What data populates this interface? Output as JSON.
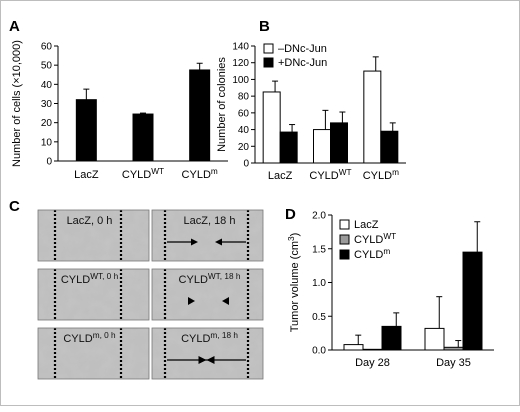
{
  "figure": {
    "panel_letters": [
      "A",
      "B",
      "C",
      "D"
    ]
  },
  "chart_data": [
    {
      "panel": "A",
      "type": "bar",
      "categories": [
        "LacZ",
        "CYLD|WT",
        "CYLD|m"
      ],
      "series": [
        {
          "values": [
            32,
            24.5,
            47.5
          ],
          "errors": [
            5.5,
            0.5,
            3.5
          ],
          "color": "#000000"
        }
      ],
      "ylabel": "Number of cells (×10,000)",
      "ylim": [
        0,
        60
      ],
      "yticks": [
        "0",
        "10",
        "20",
        "30",
        "40",
        "50",
        "60"
      ],
      "grid": false
    },
    {
      "panel": "B",
      "type": "bar",
      "categories": [
        "LacZ",
        "CYLD|WT",
        "CYLD|m"
      ],
      "series": [
        {
          "name": "–DNc-Jun",
          "values": [
            85,
            40,
            110
          ],
          "errors": [
            13,
            23,
            17
          ],
          "color": "#ffffff"
        },
        {
          "name": "+DNc-Jun",
          "values": [
            37,
            48,
            38
          ],
          "errors": [
            9,
            13,
            10
          ],
          "color": "#000000"
        }
      ],
      "ylabel": "Number of colonies",
      "ylim": [
        0,
        140
      ],
      "yticks": [
        "0",
        "20",
        "40",
        "60",
        "80",
        "100",
        "120",
        "140"
      ],
      "legend": "top-left",
      "grid": false
    },
    {
      "panel": "D",
      "type": "bar",
      "categories": [
        "Day 28",
        "Day 35"
      ],
      "series": [
        {
          "name": "LacZ",
          "values": [
            0.08,
            0.32
          ],
          "errors": [
            0.14,
            0.47
          ],
          "color": "#ffffff"
        },
        {
          "name": "CYLD|WT",
          "values": [
            0.01,
            0.04
          ],
          "errors": [
            0.0,
            0.1
          ],
          "color": "#9a9a9a"
        },
        {
          "name": "CYLD|m",
          "values": [
            0.35,
            1.45
          ],
          "errors": [
            0.2,
            0.45
          ],
          "color": "#000000"
        }
      ],
      "ylabel": "Tumor volume (cm|3)",
      "ylim": [
        0,
        2.0
      ],
      "yticks": [
        "0.0",
        "0.5",
        "1.0",
        "1.5",
        "2.0"
      ],
      "legend": "top-left",
      "grid": false
    }
  ],
  "micrographs": {
    "panel": "C",
    "tiles": [
      {
        "label": "LacZ, 0 h",
        "marker": "none"
      },
      {
        "label": "LacZ, 18 h",
        "marker": "arrows-inward"
      },
      {
        "label": "CYLD|WT, 0 h",
        "marker": "none"
      },
      {
        "label": "CYLD|WT, 18 h",
        "marker": "arrowheads"
      },
      {
        "label": "CYLD|m, 0 h",
        "marker": "none"
      },
      {
        "label": "CYLD|m, 18 h",
        "marker": "arrows-closed"
      }
    ]
  }
}
